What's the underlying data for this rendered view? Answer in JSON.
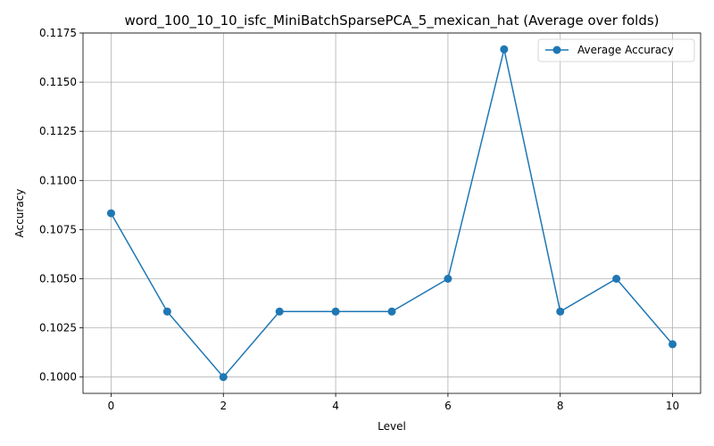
{
  "chart_data": {
    "type": "line",
    "title": "word_100_10_10_isfc_MiniBatchSparsePCA_5_mexican_hat (Average over folds)",
    "xlabel": "Level",
    "ylabel": "Accuracy",
    "xlim": [
      -0.5,
      10.5
    ],
    "ylim": [
      0.09917,
      0.1175
    ],
    "xticks": [
      0,
      2,
      4,
      6,
      8,
      10
    ],
    "yticks": [
      0.1,
      0.1025,
      0.105,
      0.1075,
      0.11,
      0.1125,
      0.115,
      0.1175
    ],
    "ytick_labels": [
      "0.1000",
      "0.1025",
      "0.1050",
      "0.1075",
      "0.1100",
      "0.1125",
      "0.1150",
      "0.1175"
    ],
    "grid": true,
    "legend_position": "top-right",
    "series": [
      {
        "name": "Average Accuracy",
        "color": "#1f77b4",
        "marker": "circle",
        "x": [
          0,
          1,
          2,
          3,
          4,
          5,
          6,
          7,
          8,
          9,
          10
        ],
        "values": [
          0.10833,
          0.10333,
          0.1,
          0.10333,
          0.10333,
          0.10333,
          0.105,
          0.11667,
          0.10333,
          0.105,
          0.10167
        ]
      }
    ]
  }
}
